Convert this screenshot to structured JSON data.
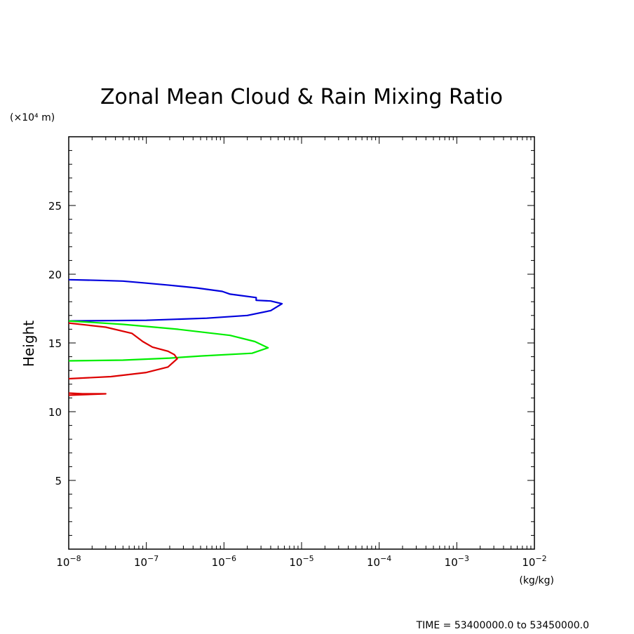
{
  "chart_data": {
    "type": "line",
    "title": "Zonal Mean Cloud & Rain Mixing Ratio",
    "ylabel": "Height",
    "y_unit": "(×10⁴ m)",
    "x_unit": "(kg/kg)",
    "x_scale": "log",
    "xlim": [
      1e-08,
      0.01
    ],
    "ylim": [
      0,
      30
    ],
    "x_ticks": [
      {
        "value": 1e-08,
        "base": "10",
        "exp": "−8"
      },
      {
        "value": 1e-07,
        "base": "10",
        "exp": "−7"
      },
      {
        "value": 1e-06,
        "base": "10",
        "exp": "−6"
      },
      {
        "value": 1e-05,
        "base": "10",
        "exp": "−5"
      },
      {
        "value": 0.0001,
        "base": "10",
        "exp": "−4"
      },
      {
        "value": 0.001,
        "base": "10",
        "exp": "−3"
      },
      {
        "value": 0.01,
        "base": "10",
        "exp": "−2"
      }
    ],
    "y_ticks": [
      5,
      10,
      15,
      20,
      25
    ],
    "series": [
      {
        "color": "#0000dd",
        "points": [
          [
            1e-08,
            19.6
          ],
          [
            2.5e-08,
            19.55
          ],
          [
            5e-08,
            19.5
          ],
          [
            1e-07,
            19.35
          ],
          [
            2e-07,
            19.2
          ],
          [
            4.5e-07,
            19.0
          ],
          [
            9.5e-07,
            18.75
          ],
          [
            1.2e-06,
            18.55
          ],
          [
            2.6e-06,
            18.3
          ],
          [
            2.6e-06,
            18.1
          ],
          [
            4e-06,
            18.05
          ],
          [
            5.6e-06,
            17.85
          ],
          [
            4e-06,
            17.35
          ],
          [
            2e-06,
            17.0
          ],
          [
            6e-07,
            16.8
          ],
          [
            1e-07,
            16.65
          ],
          [
            1e-08,
            16.6
          ]
        ]
      },
      {
        "color": "#00ee00",
        "points": [
          [
            1e-08,
            16.6
          ],
          [
            5e-08,
            16.35
          ],
          [
            2.5e-07,
            16.0
          ],
          [
            1.2e-06,
            15.55
          ],
          [
            2.5e-06,
            15.1
          ],
          [
            3.7e-06,
            14.65
          ],
          [
            2.3e-06,
            14.25
          ],
          [
            5e-07,
            14.05
          ],
          [
            2e-07,
            13.9
          ],
          [
            5e-08,
            13.75
          ],
          [
            1e-08,
            13.7
          ]
        ]
      },
      {
        "color": "#dd0000",
        "points": [
          [
            1e-08,
            16.45
          ],
          [
            3e-08,
            16.15
          ],
          [
            6.5e-08,
            15.7
          ],
          [
            9e-08,
            15.1
          ],
          [
            1.2e-07,
            14.7
          ],
          [
            1.9e-07,
            14.4
          ],
          [
            2.3e-07,
            14.15
          ],
          [
            2.5e-07,
            13.85
          ],
          [
            1.9e-07,
            13.25
          ],
          [
            1e-07,
            12.85
          ],
          [
            3.5e-08,
            12.55
          ],
          [
            1e-08,
            12.4
          ]
        ]
      },
      {
        "color": "#dd0000",
        "points": [
          [
            1e-08,
            11.2
          ],
          [
            3e-08,
            11.3
          ],
          [
            1.5e-08,
            11.3
          ],
          [
            1e-08,
            11.35
          ]
        ]
      }
    ]
  },
  "footer": {
    "time_label": "TIME = 53400000.0 to 53450000.0"
  }
}
